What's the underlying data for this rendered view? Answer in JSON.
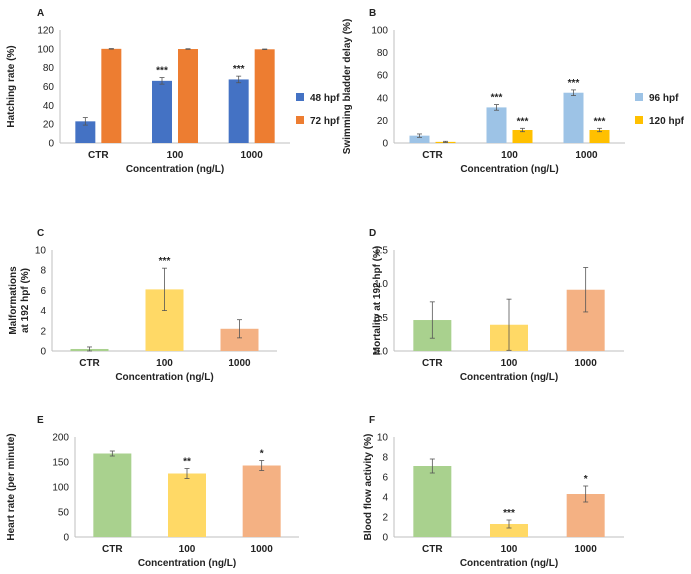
{
  "chart_data": [
    {
      "panel": "A",
      "type": "bar",
      "categories": [
        "CTR",
        "100",
        "1000"
      ],
      "series": [
        {
          "name": "48 hpf",
          "color": "#4472C4",
          "values": [
            23,
            66,
            67.5
          ],
          "errors": [
            4,
            3.5,
            3.5
          ],
          "sig": [
            "",
            "***",
            "***"
          ]
        },
        {
          "name": "72 hpf",
          "color": "#ED7D31",
          "values": [
            100,
            99.8,
            99.5
          ],
          "errors": [
            0.3,
            0.3,
            0.3
          ],
          "sig": [
            "",
            "",
            ""
          ]
        }
      ],
      "ylabel": "Hatching rate (%)",
      "xlabel": "Concentration (ng/L)",
      "ylim": [
        0,
        120
      ],
      "yticks": [
        0,
        20,
        40,
        60,
        80,
        100,
        120
      ],
      "legend": "right"
    },
    {
      "panel": "B",
      "type": "bar",
      "categories": [
        "CTR",
        "100",
        "1000"
      ],
      "series": [
        {
          "name": "96 hpf",
          "color": "#9DC3E6",
          "values": [
            6.5,
            31.5,
            44.5
          ],
          "errors": [
            1.5,
            2.5,
            2.5
          ],
          "sig": [
            "",
            "***",
            "***"
          ]
        },
        {
          "name": "120 hpf",
          "color": "#FFC000",
          "values": [
            1,
            11.5,
            11.5
          ],
          "errors": [
            0.5,
            1.5,
            1.5
          ],
          "sig": [
            "",
            "***",
            "***"
          ]
        }
      ],
      "ylabel": "Swimming bladder delay (%)",
      "xlabel": "Concentration (ng/L)",
      "ylim": [
        0,
        100
      ],
      "yticks": [
        0,
        20,
        40,
        60,
        80,
        100
      ],
      "legend": "right"
    },
    {
      "panel": "C",
      "type": "bar",
      "categories": [
        "CTR",
        "100",
        "1000"
      ],
      "colors": [
        "#A9D18E",
        "#FFD966",
        "#F4B183"
      ],
      "values": [
        0.2,
        6.1,
        2.2
      ],
      "errors": [
        0.2,
        2.1,
        0.9
      ],
      "sig": [
        "",
        "***",
        ""
      ],
      "ylabel_lines": [
        "Malformations",
        "at 192 hpf (%)"
      ],
      "xlabel": "Concentration (ng/L)",
      "ylim": [
        0,
        10
      ],
      "yticks": [
        0,
        2,
        4,
        6,
        8,
        10
      ]
    },
    {
      "panel": "D",
      "type": "bar",
      "categories": [
        "CTR",
        "100",
        "1000"
      ],
      "colors": [
        "#A9D18E",
        "#FFD966",
        "#F4B183"
      ],
      "values": [
        0.46,
        0.39,
        0.91
      ],
      "errors": [
        0.27,
        0.38,
        0.33
      ],
      "sig": [
        "",
        "",
        ""
      ],
      "ylabel": "Mortality at 192 hpf (%)",
      "xlabel": "Concentration (ng/L)",
      "ylim": [
        0,
        1.5
      ],
      "yticks": [
        "0.0",
        "0.5",
        "1.0",
        "1.5"
      ],
      "ytick_values": [
        0,
        0.5,
        1.0,
        1.5
      ]
    },
    {
      "panel": "E",
      "type": "bar",
      "categories": [
        "CTR",
        "100",
        "1000"
      ],
      "colors": [
        "#A9D18E",
        "#FFD966",
        "#F4B183"
      ],
      "values": [
        167,
        127,
        143
      ],
      "errors": [
        5,
        10,
        10
      ],
      "sig": [
        "",
        "**",
        "*"
      ],
      "ylabel": "Heart rate (per minute)",
      "xlabel": "Concentration (ng/L)",
      "ylim": [
        0,
        200
      ],
      "yticks": [
        0,
        50,
        100,
        150,
        200
      ]
    },
    {
      "panel": "F",
      "type": "bar",
      "categories": [
        "CTR",
        "100",
        "1000"
      ],
      "colors": [
        "#A9D18E",
        "#FFD966",
        "#F4B183"
      ],
      "values": [
        7.1,
        1.3,
        4.3
      ],
      "errors": [
        0.7,
        0.4,
        0.8
      ],
      "sig": [
        "",
        "***",
        "*"
      ],
      "ylabel": "Blood flow activity (%)",
      "xlabel": "Concentration (ng/L)",
      "ylim": [
        0,
        10
      ],
      "yticks": [
        "0",
        "2",
        "4",
        "6",
        "8",
        "10"
      ],
      "ytick_values": [
        0,
        2,
        4,
        6,
        8,
        10
      ]
    }
  ]
}
